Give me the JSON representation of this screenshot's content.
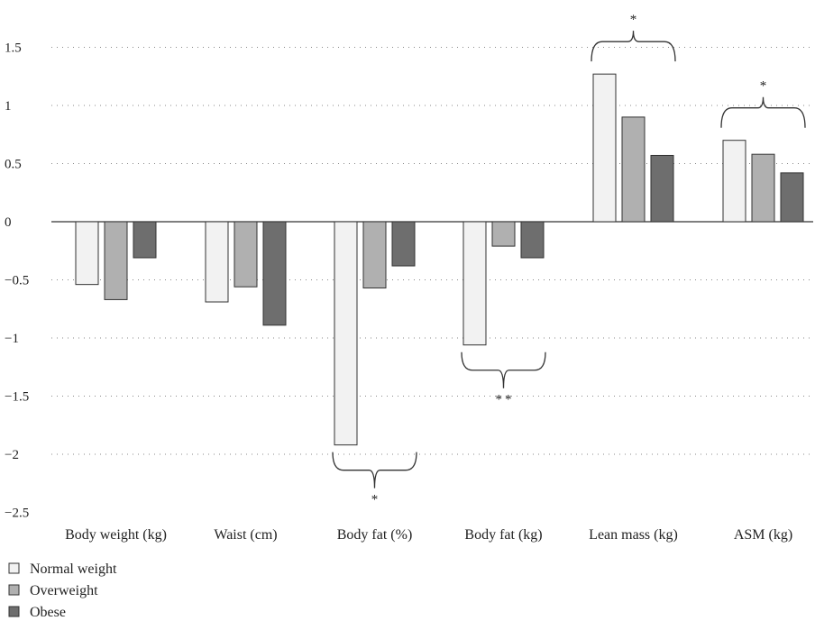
{
  "chart_data": {
    "type": "bar",
    "categories": [
      "Body weight (kg)",
      "Waist (cm)",
      "Body fat (%)",
      "Body fat (kg)",
      "Lean mass (kg)",
      "ASM (kg)"
    ],
    "series": [
      {
        "name": "Normal weight",
        "color": "#f2f2f2",
        "values": [
          -0.54,
          -0.69,
          -1.92,
          -1.06,
          1.27,
          0.7
        ]
      },
      {
        "name": "Overweight",
        "color": "#b0b0b0",
        "values": [
          -0.67,
          -0.56,
          -0.57,
          -0.21,
          0.9,
          0.58
        ]
      },
      {
        "name": "Obese",
        "color": "#6e6e6e",
        "values": [
          -0.31,
          -0.89,
          -0.38,
          -0.31,
          0.57,
          0.42
        ]
      }
    ],
    "yticks": [
      "1.5",
      "1",
      "0.5",
      "0",
      "-0.5",
      "-1",
      "-1.5",
      "-2",
      "-2.5"
    ],
    "ylim": [
      -2.5,
      1.7
    ],
    "grid": "horizontal dotted",
    "legend_position": "bottom-left",
    "annotations": [
      {
        "category": "Body fat (%)",
        "label": "*",
        "side": "below"
      },
      {
        "category": "Body fat (kg)",
        "label": "**",
        "side": "below"
      },
      {
        "category": "Lean mass (kg)",
        "label": "*",
        "side": "above"
      },
      {
        "category": "ASM (kg)",
        "label": "*",
        "side": "above"
      }
    ]
  }
}
